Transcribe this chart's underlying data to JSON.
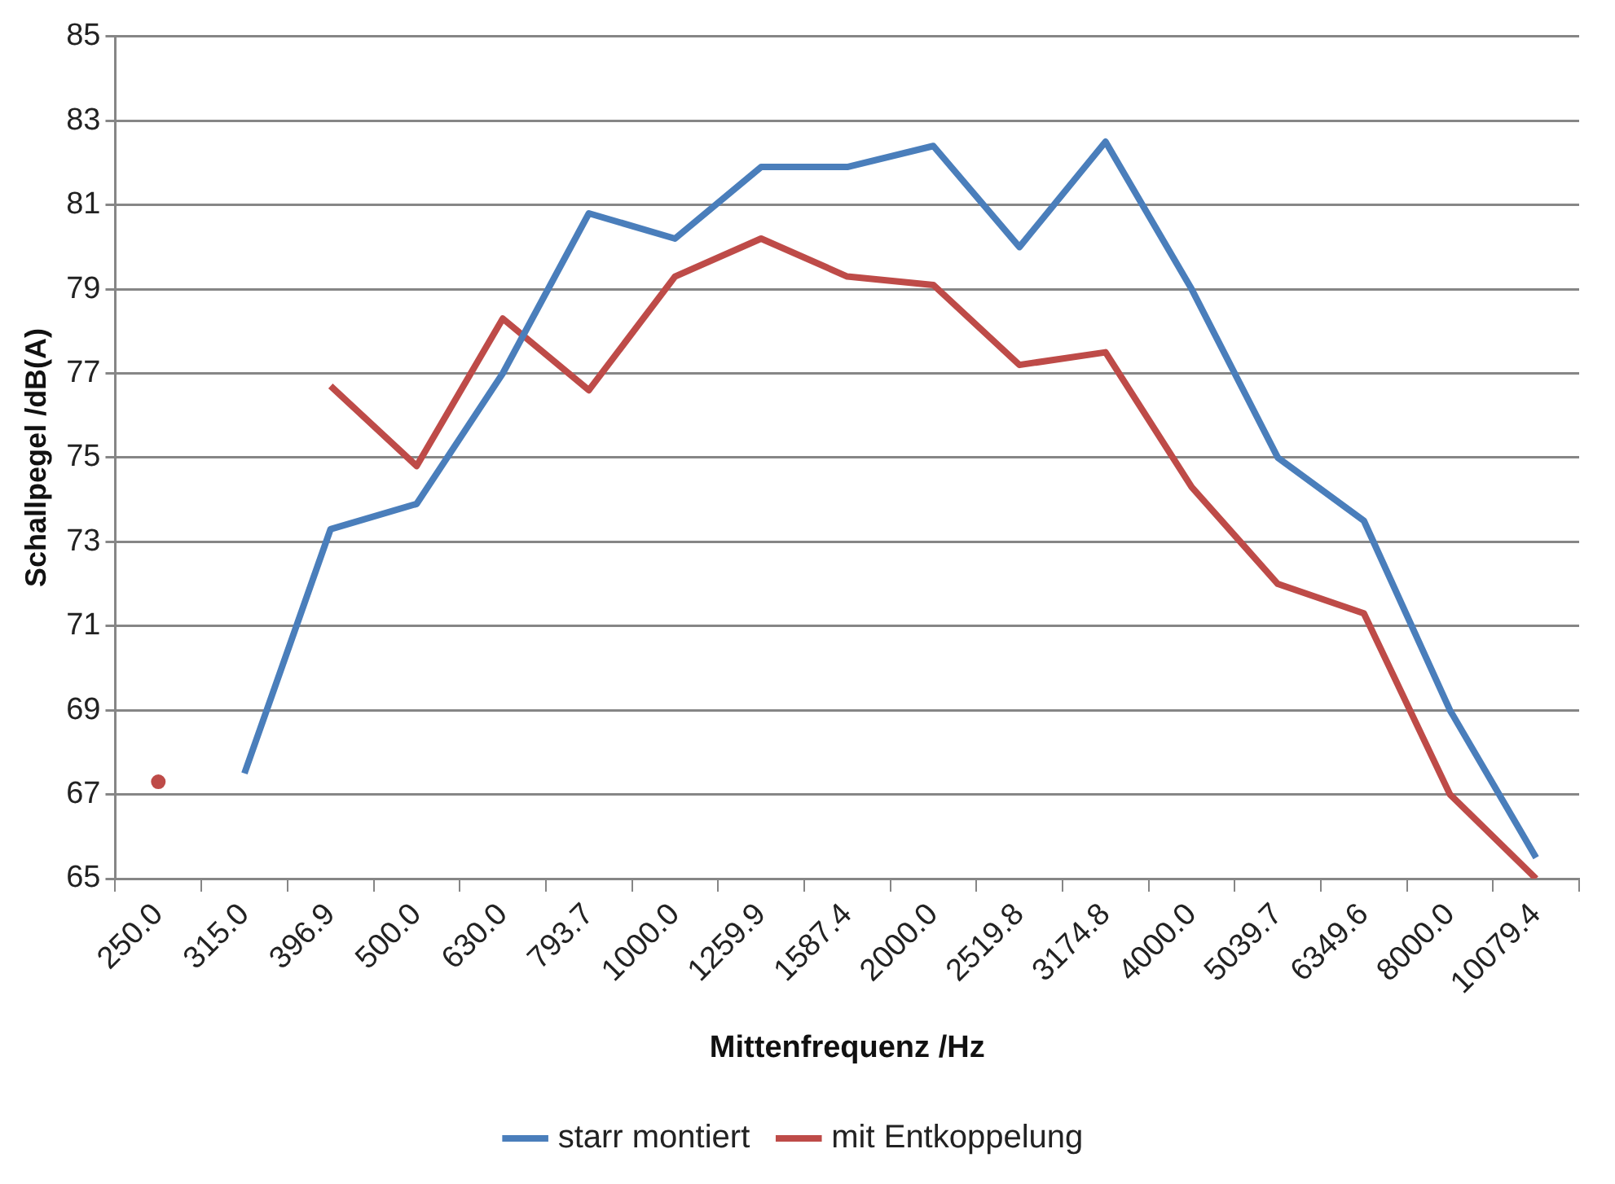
{
  "chart_data": {
    "type": "line",
    "xlabel": "Mittenfrequenz /Hz",
    "ylabel": "Schallpegel /dB(A)",
    "categories": [
      "250.0",
      "315.0",
      "396.9",
      "500.0",
      "630.0",
      "793.7",
      "1000.0",
      "1259.9",
      "1587.4",
      "2000.0",
      "2519.8",
      "3174.8",
      "4000.0",
      "5039.7",
      "6349.6",
      "8000.0",
      "10079.4"
    ],
    "series": [
      {
        "name": "starr montiert",
        "color": "#4a7ebb",
        "values": [
          null,
          67.5,
          73.3,
          73.9,
          77.0,
          80.8,
          80.2,
          81.9,
          81.9,
          82.4,
          80.0,
          82.5,
          79.0,
          75.0,
          73.5,
          69.0,
          65.5
        ]
      },
      {
        "name": "mit Entkoppelung",
        "color": "#be4b48",
        "values": [
          67.3,
          null,
          76.7,
          74.8,
          78.3,
          76.6,
          79.3,
          80.2,
          79.3,
          79.1,
          77.2,
          77.5,
          74.3,
          72.0,
          71.3,
          67.0,
          65.0
        ]
      }
    ],
    "ylim": [
      65,
      85
    ],
    "yticks": [
      65,
      67,
      69,
      71,
      73,
      75,
      77,
      79,
      81,
      83,
      85
    ],
    "grid": "y",
    "legend": "bottom",
    "marker": "none",
    "line_style": "solid"
  }
}
